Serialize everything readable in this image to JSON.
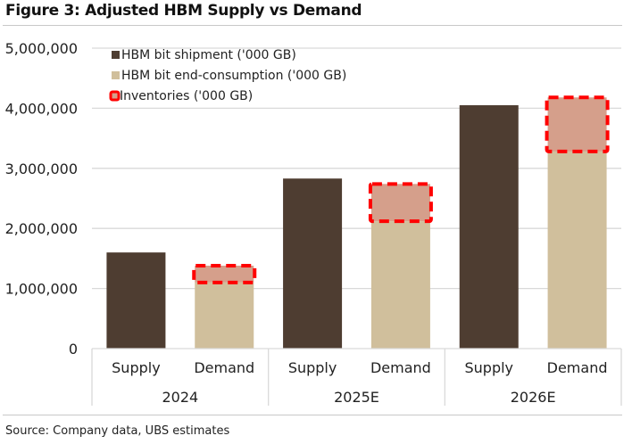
{
  "header": {
    "title": "Figure 3: Adjusted HBM Supply vs Demand"
  },
  "footer": {
    "source": "Source: Company data, UBS estimates"
  },
  "colors": {
    "shipment": "#4e3d31",
    "consumption": "#d0bf9c",
    "inventory_fill": "#d59f8b",
    "inventory_border": "#ff0000",
    "grid": "#d9d9d9"
  },
  "chart_data": {
    "type": "bar",
    "stacked": true,
    "title": "Figure 3: Adjusted HBM Supply vs Demand",
    "xlabel": "",
    "ylabel": "",
    "ylim": [
      0,
      5000000
    ],
    "yticks": [
      0,
      1000000,
      2000000,
      3000000,
      4000000,
      5000000
    ],
    "ytick_labels": [
      "0",
      "1,000,000",
      "2,000,000",
      "3,000,000",
      "4,000,000",
      "5,000,000"
    ],
    "grid": true,
    "legend_position": "top-left",
    "groups": [
      "2024",
      "2025E",
      "2026E"
    ],
    "categories": [
      "Supply",
      "Demand",
      "Supply",
      "Demand",
      "Supply",
      "Demand"
    ],
    "series": [
      {
        "name": "HBM bit shipment ('000 GB)",
        "values": [
          1600000,
          0,
          2830000,
          0,
          4050000,
          0
        ]
      },
      {
        "name": "HBM bit end-consumption ('000 GB)",
        "values": [
          0,
          1100000,
          0,
          2120000,
          0,
          3280000
        ]
      },
      {
        "name": "Inventories ('000 GB)",
        "values": [
          0,
          280000,
          0,
          620000,
          0,
          900000
        ]
      }
    ]
  }
}
